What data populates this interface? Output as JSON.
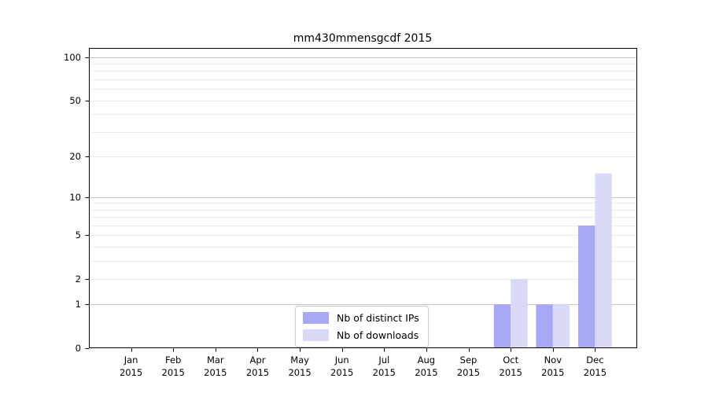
{
  "chart_data": {
    "type": "bar",
    "title": "mm430mmensgcdf 2015",
    "xlabel": "",
    "ylabel": "",
    "categories": [
      "Jan 2015",
      "Feb 2015",
      "Mar 2015",
      "Apr 2015",
      "May 2015",
      "Jun 2015",
      "Jul 2015",
      "Aug 2015",
      "Sep 2015",
      "Oct 2015",
      "Nov 2015",
      "Dec 2015"
    ],
    "series": [
      {
        "name": "Nb of distinct IPs",
        "color": "#a8a8f6",
        "values": [
          0,
          0,
          0,
          0,
          0,
          0,
          0,
          0,
          0,
          1,
          1,
          6
        ]
      },
      {
        "name": "Nb of downloads",
        "color": "#d9d9f8",
        "values": [
          0,
          0,
          0,
          0,
          0,
          0,
          0,
          0,
          0,
          2,
          1,
          15
        ]
      }
    ],
    "yscale": "log1p",
    "ylim": [
      0,
      116
    ],
    "y_tick_labels": [
      "0",
      "1",
      "2",
      "5",
      "10",
      "20",
      "50",
      "100"
    ],
    "y_major_gridlines": [
      1,
      10,
      100
    ],
    "y_minor_gridlines": [
      2,
      3,
      4,
      5,
      6,
      7,
      8,
      9,
      20,
      30,
      40,
      50,
      60,
      70,
      80,
      90
    ],
    "grid": true,
    "legend_position": "lower center"
  },
  "colors": {
    "background": "#ffffff",
    "axis": "#000000",
    "tick_label": "#000000",
    "major_grid": "#c6c6c6",
    "minor_grid": "#ececec",
    "legend_border": "#cccccc"
  }
}
